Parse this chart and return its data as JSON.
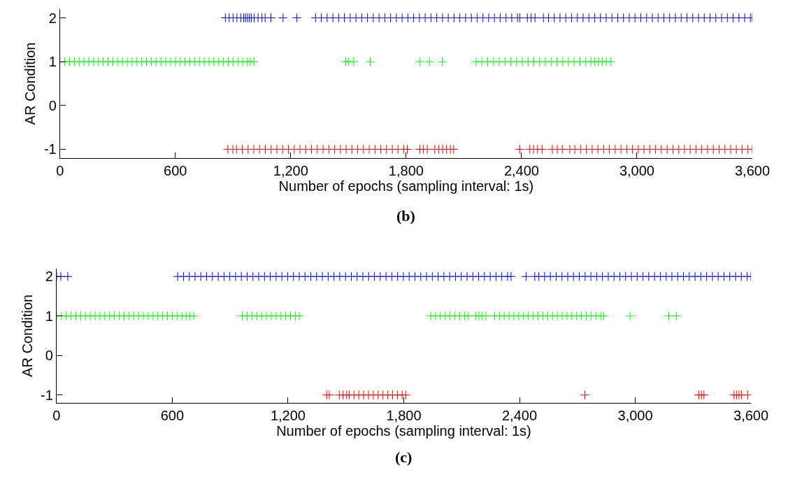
{
  "chart_data": [
    {
      "type": "scatter",
      "title": "(b)",
      "xlabel": "Number of epochs (sampling interval: 1s)",
      "ylabel": "AR Condition",
      "marker": "cross",
      "xlim": [
        0,
        3600
      ],
      "xticks": [
        0,
        600,
        {
          "value": 1200,
          "label": "1,200"
        },
        {
          "value": 1800,
          "label": "1,800"
        },
        {
          "value": 2400,
          "label": "2,400"
        },
        {
          "value": 3000,
          "label": "3,000"
        },
        {
          "value": 3600,
          "label": "3,600"
        }
      ],
      "ylim": [
        -1.2,
        2.2
      ],
      "yticks": [
        -1,
        0,
        1,
        2
      ],
      "series": [
        {
          "color": "#0000ff",
          "x": [
            860,
            880,
            900,
            920,
            940,
            955,
            965,
            975,
            985,
            995,
            1010,
            1030,
            1050,
            1067,
            1097,
            1160,
            1232,
            1329,
            1359,
            1389,
            1419,
            1449,
            1479,
            1509,
            1539,
            1569,
            1599,
            1629,
            1659,
            1689,
            1719,
            1749,
            1779,
            1809,
            1839,
            1869,
            1899,
            1929,
            1959,
            1989,
            2019,
            2049,
            2079,
            2109,
            2139,
            2169,
            2199,
            2229,
            2259,
            2289,
            2319,
            2349,
            2379,
            2391,
            2430,
            2450,
            2470,
            2514,
            2540,
            2570,
            2600,
            2630,
            2660,
            2690,
            2720,
            2750,
            2780,
            2810,
            2840,
            2870,
            2900,
            2930,
            2960,
            2990,
            3020,
            3050,
            3080,
            3110,
            3140,
            3170,
            3200,
            3230,
            3260,
            3290,
            3320,
            3350,
            3380,
            3410,
            3440,
            3470,
            3500,
            3530,
            3560,
            3590,
            3600
          ],
          "values": [
            2,
            2,
            2,
            2,
            2,
            2,
            2,
            2,
            2,
            2,
            2,
            2,
            2,
            2,
            2,
            2,
            2,
            2,
            2,
            2,
            2,
            2,
            2,
            2,
            2,
            2,
            2,
            2,
            2,
            2,
            2,
            2,
            2,
            2,
            2,
            2,
            2,
            2,
            2,
            2,
            2,
            2,
            2,
            2,
            2,
            2,
            2,
            2,
            2,
            2,
            2,
            2,
            2,
            2,
            2,
            2,
            2,
            2,
            2,
            2,
            2,
            2,
            2,
            2,
            2,
            2,
            2,
            2,
            2,
            2,
            2,
            2,
            2,
            2,
            2,
            2,
            2,
            2,
            2,
            2,
            2,
            2,
            2,
            2,
            2,
            2,
            2,
            2,
            2,
            2,
            2,
            2,
            2,
            2,
            2
          ]
        },
        {
          "color": "#00ff00",
          "x": [
            0,
            25,
            50,
            75,
            100,
            125,
            150,
            175,
            200,
            225,
            250,
            275,
            300,
            325,
            350,
            375,
            400,
            425,
            450,
            475,
            500,
            525,
            550,
            575,
            600,
            625,
            650,
            675,
            700,
            725,
            750,
            775,
            800,
            825,
            850,
            875,
            900,
            925,
            950,
            975,
            990,
            1009,
            1486,
            1500,
            1527,
            1613,
            1871,
            1921,
            1988,
            2164,
            2194,
            2224,
            2254,
            2284,
            2314,
            2344,
            2374,
            2404,
            2434,
            2464,
            2494,
            2524,
            2554,
            2584,
            2614,
            2644,
            2674,
            2704,
            2734,
            2761,
            2780,
            2800,
            2820,
            2840,
            2865
          ],
          "values": [
            1,
            1,
            1,
            1,
            1,
            1,
            1,
            1,
            1,
            1,
            1,
            1,
            1,
            1,
            1,
            1,
            1,
            1,
            1,
            1,
            1,
            1,
            1,
            1,
            1,
            1,
            1,
            1,
            1,
            1,
            1,
            1,
            1,
            1,
            1,
            1,
            1,
            1,
            1,
            1,
            1,
            1,
            1,
            1,
            1,
            1,
            1,
            1,
            1,
            1,
            1,
            1,
            1,
            1,
            1,
            1,
            1,
            1,
            1,
            1,
            1,
            1,
            1,
            1,
            1,
            1,
            1,
            1,
            1,
            1,
            1,
            1,
            1,
            1,
            1
          ]
        },
        {
          "color": "#ff0000",
          "x": [
            873,
            899,
            918,
            948,
            978,
            1008,
            1038,
            1068,
            1098,
            1128,
            1158,
            1188,
            1218,
            1248,
            1278,
            1308,
            1338,
            1368,
            1398,
            1428,
            1458,
            1488,
            1518,
            1548,
            1578,
            1608,
            1638,
            1668,
            1698,
            1728,
            1758,
            1788,
            1806,
            1871,
            1890,
            1910,
            1949,
            1970,
            1990,
            2010,
            2030,
            2047,
            2391,
            2443,
            2463,
            2483,
            2507,
            2560,
            2586,
            2612,
            2651,
            2677,
            2707,
            2737,
            2767,
            2797,
            2827,
            2857,
            2887,
            2917,
            2947,
            2977,
            3007,
            3037,
            3067,
            3097,
            3127,
            3157,
            3187,
            3217,
            3247,
            3277,
            3307,
            3337,
            3367,
            3397,
            3427,
            3457,
            3487,
            3517,
            3547,
            3577,
            3600
          ],
          "values": [
            -1,
            -1,
            -1,
            -1,
            -1,
            -1,
            -1,
            -1,
            -1,
            -1,
            -1,
            -1,
            -1,
            -1,
            -1,
            -1,
            -1,
            -1,
            -1,
            -1,
            -1,
            -1,
            -1,
            -1,
            -1,
            -1,
            -1,
            -1,
            -1,
            -1,
            -1,
            -1,
            -1,
            -1,
            -1,
            -1,
            -1,
            -1,
            -1,
            -1,
            -1,
            -1,
            -1,
            -1,
            -1,
            -1,
            -1,
            -1,
            -1,
            -1,
            -1,
            -1,
            -1,
            -1,
            -1,
            -1,
            -1,
            -1,
            -1,
            -1,
            -1,
            -1,
            -1,
            -1,
            -1,
            -1,
            -1,
            -1,
            -1,
            -1,
            -1,
            -1,
            -1,
            -1,
            -1,
            -1,
            -1,
            -1,
            -1,
            -1,
            -1,
            -1,
            -1
          ]
        }
      ]
    },
    {
      "type": "scatter",
      "title": "(c)",
      "xlabel": "Number of epochs (sampling interval: 1s)",
      "ylabel": "AR Condition",
      "marker": "cross",
      "xlim": [
        0,
        3600
      ],
      "xticks": [
        0,
        600,
        {
          "value": 1200,
          "label": "1,200"
        },
        {
          "value": 1800,
          "label": "1,800"
        },
        {
          "value": 2400,
          "label": "2,400"
        },
        {
          "value": 3000,
          "label": "3,000"
        },
        {
          "value": 3600,
          "label": "3,600"
        }
      ],
      "ylim": [
        -1.2,
        2.2
      ],
      "yticks": [
        -1,
        0,
        1,
        2
      ],
      "series": [
        {
          "color": "#0000ff",
          "x": [
            0,
            22,
            58,
            628,
            658,
            688,
            718,
            748,
            778,
            808,
            838,
            868,
            898,
            928,
            958,
            988,
            1018,
            1048,
            1078,
            1108,
            1138,
            1168,
            1198,
            1228,
            1258,
            1288,
            1318,
            1348,
            1378,
            1408,
            1438,
            1468,
            1498,
            1528,
            1558,
            1588,
            1618,
            1648,
            1678,
            1708,
            1738,
            1768,
            1798,
            1828,
            1858,
            1888,
            1918,
            1948,
            1978,
            2008,
            2038,
            2068,
            2098,
            2128,
            2158,
            2188,
            2218,
            2248,
            2278,
            2308,
            2338,
            2356,
            2434,
            2479,
            2500,
            2530,
            2560,
            2590,
            2620,
            2650,
            2680,
            2710,
            2740,
            2770,
            2800,
            2830,
            2860,
            2890,
            2920,
            2950,
            2980,
            3010,
            3040,
            3070,
            3100,
            3130,
            3160,
            3190,
            3220,
            3250,
            3280,
            3310,
            3340,
            3370,
            3400,
            3430,
            3460,
            3490,
            3520,
            3550,
            3580,
            3600
          ],
          "values": [
            2,
            2,
            2,
            2,
            2,
            2,
            2,
            2,
            2,
            2,
            2,
            2,
            2,
            2,
            2,
            2,
            2,
            2,
            2,
            2,
            2,
            2,
            2,
            2,
            2,
            2,
            2,
            2,
            2,
            2,
            2,
            2,
            2,
            2,
            2,
            2,
            2,
            2,
            2,
            2,
            2,
            2,
            2,
            2,
            2,
            2,
            2,
            2,
            2,
            2,
            2,
            2,
            2,
            2,
            2,
            2,
            2,
            2,
            2,
            2,
            2,
            2,
            2,
            2,
            2,
            2,
            2,
            2,
            2,
            2,
            2,
            2,
            2,
            2,
            2,
            2,
            2,
            2,
            2,
            2,
            2,
            2,
            2,
            2,
            2,
            2,
            2,
            2,
            2,
            2,
            2,
            2,
            2,
            2,
            2,
            2,
            2,
            2,
            2,
            2,
            2,
            2
          ]
        },
        {
          "color": "#00ff00",
          "x": [
            0,
            25,
            50,
            75,
            100,
            125,
            150,
            175,
            200,
            225,
            250,
            275,
            300,
            325,
            350,
            375,
            400,
            425,
            450,
            475,
            500,
            525,
            550,
            575,
            600,
            625,
            650,
            672,
            692,
            711,
            963,
            988,
            1013,
            1038,
            1063,
            1088,
            1113,
            1138,
            1163,
            1188,
            1213,
            1238,
            1259,
            1940,
            1965,
            1990,
            2015,
            2040,
            2065,
            2090,
            2115,
            2135,
            2174,
            2190,
            2207,
            2226,
            2271,
            2296,
            2321,
            2346,
            2371,
            2396,
            2421,
            2446,
            2471,
            2496,
            2521,
            2546,
            2571,
            2596,
            2621,
            2646,
            2671,
            2696,
            2721,
            2746,
            2771,
            2796,
            2821,
            2836,
            2973,
            3174,
            3213
          ],
          "values": [
            1,
            1,
            1,
            1,
            1,
            1,
            1,
            1,
            1,
            1,
            1,
            1,
            1,
            1,
            1,
            1,
            1,
            1,
            1,
            1,
            1,
            1,
            1,
            1,
            1,
            1,
            1,
            1,
            1,
            1,
            1,
            1,
            1,
            1,
            1,
            1,
            1,
            1,
            1,
            1,
            1,
            1,
            1,
            1,
            1,
            1,
            1,
            1,
            1,
            1,
            1,
            1,
            1,
            1,
            1,
            1,
            1,
            1,
            1,
            1,
            1,
            1,
            1,
            1,
            1,
            1,
            1,
            1,
            1,
            1,
            1,
            1,
            1,
            1,
            1,
            1,
            1,
            1,
            1,
            1,
            1,
            1,
            1
          ]
        },
        {
          "color": "#ff0000",
          "x": [
            1401,
            1414,
            1466,
            1485,
            1504,
            1517,
            1542,
            1567,
            1592,
            1617,
            1642,
            1667,
            1692,
            1717,
            1742,
            1767,
            1792,
            1810,
            2739,
            3330,
            3343,
            3356,
            3512,
            3525,
            3538,
            3551,
            3583
          ],
          "values": [
            -1,
            -1,
            -1,
            -1,
            -1,
            -1,
            -1,
            -1,
            -1,
            -1,
            -1,
            -1,
            -1,
            -1,
            -1,
            -1,
            -1,
            -1,
            -1,
            -1,
            -1,
            -1,
            -1,
            -1,
            -1,
            -1,
            -1
          ]
        }
      ]
    }
  ]
}
